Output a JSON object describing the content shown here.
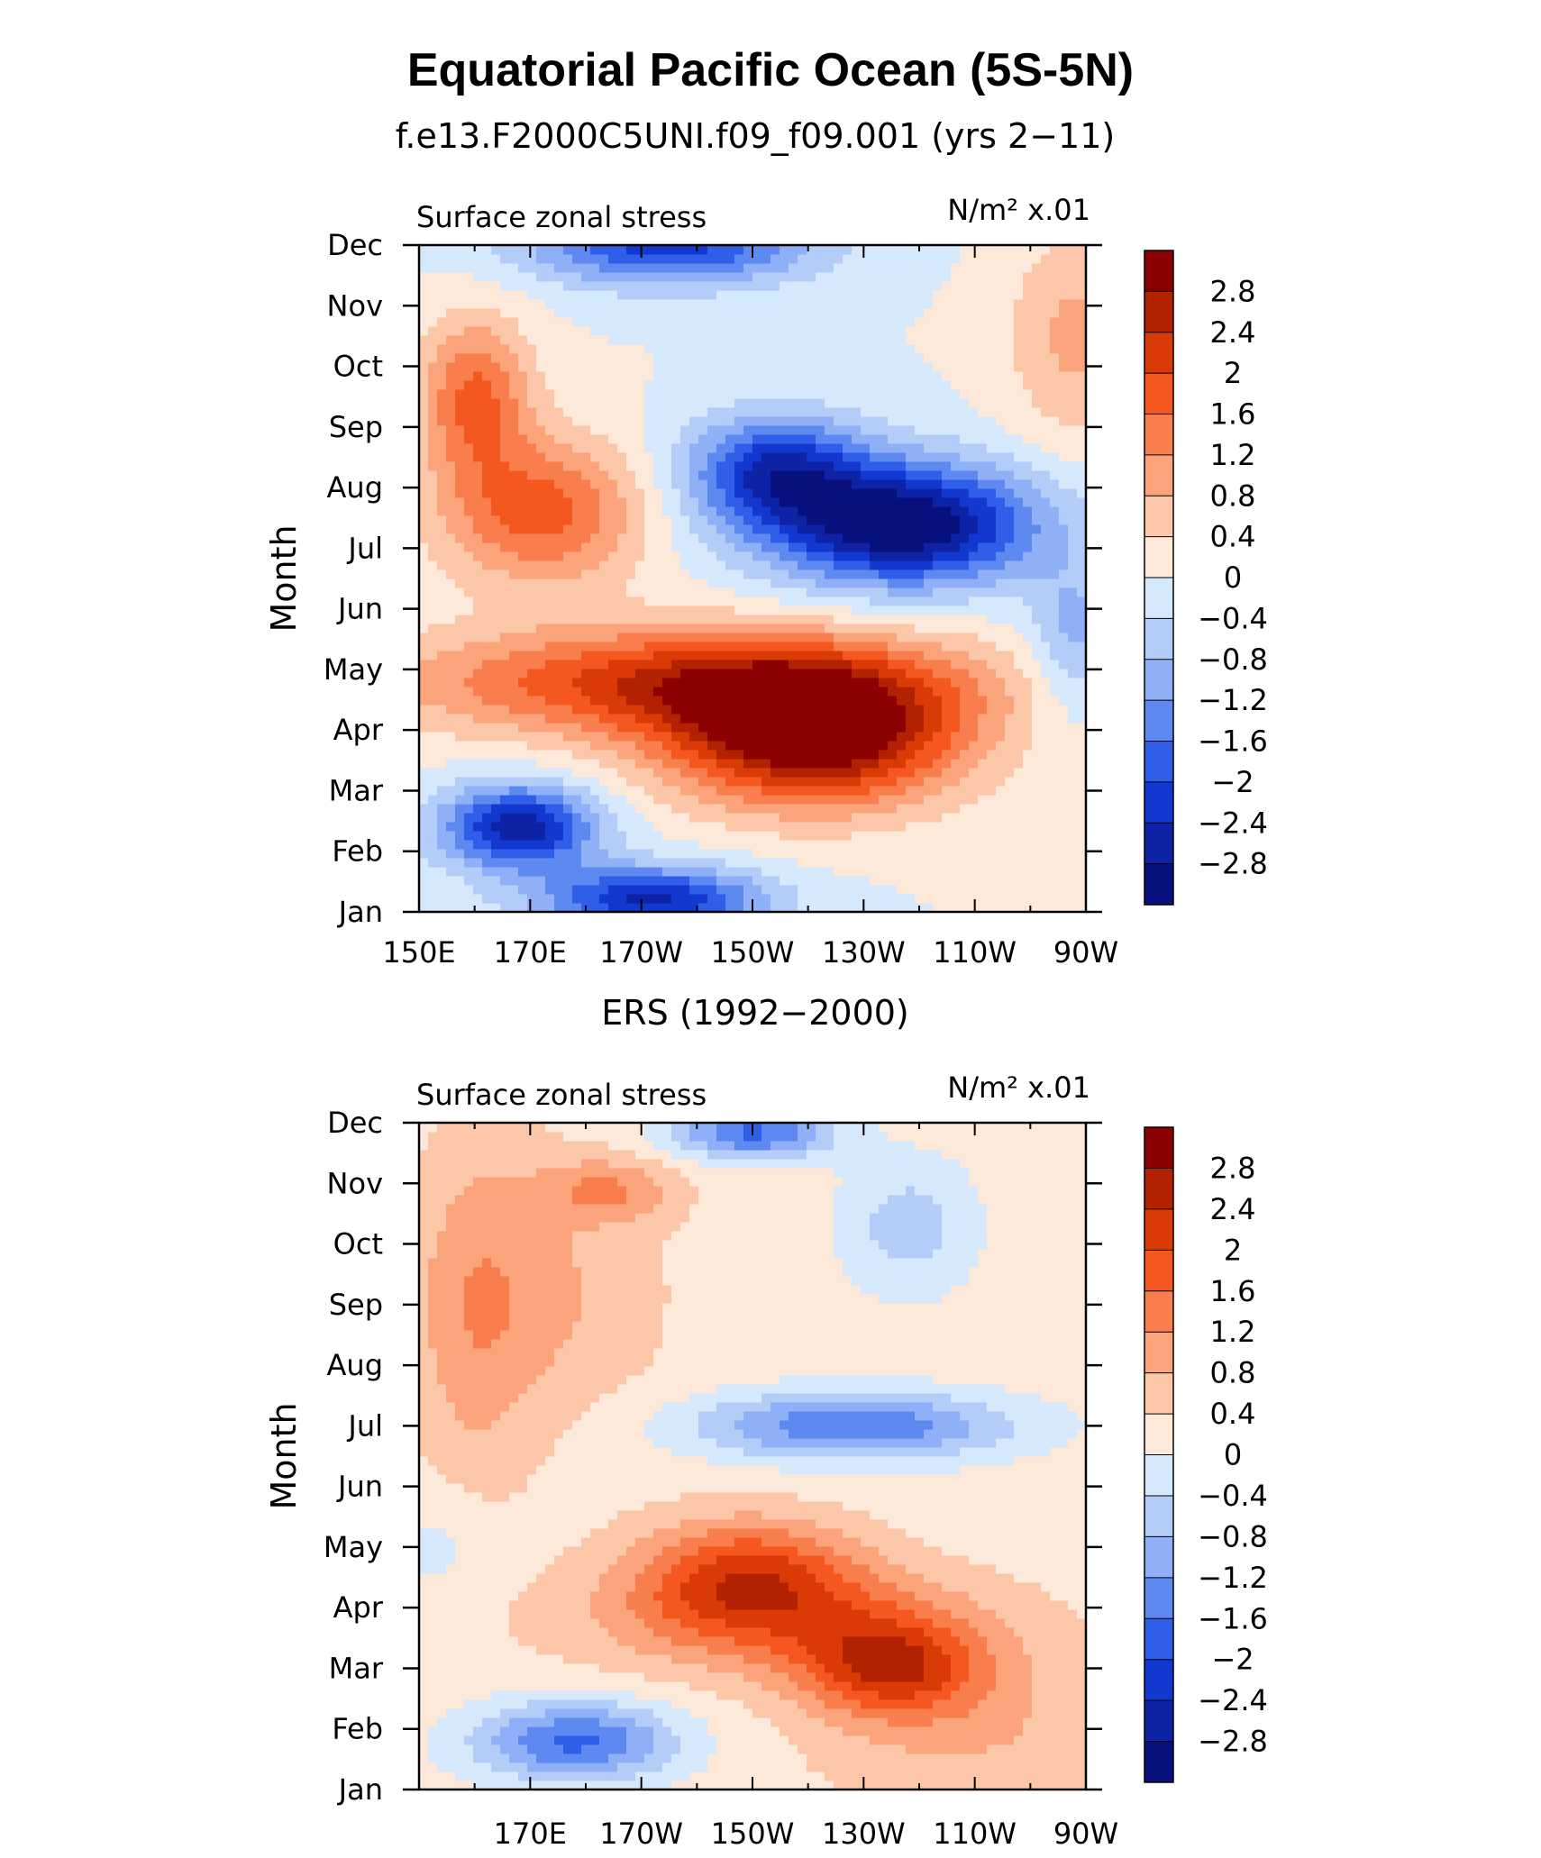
{
  "figure": {
    "title": "Equatorial Pacific Ocean (5S-5N)"
  },
  "colorbar": {
    "levels": [
      "2.8",
      "2.4",
      "2",
      "1.6",
      "1.2",
      "0.8",
      "0.4",
      "0",
      "−0.4",
      "−0.8",
      "−1.2",
      "−1.6",
      "−2",
      "−2.4",
      "−2.8"
    ],
    "colors": [
      "#8b0000",
      "#b22200",
      "#d93a06",
      "#f4581e",
      "#f97e4e",
      "#fba47c",
      "#fcc7a9",
      "#fde9d9",
      "#d6e8fb",
      "#b4cdf8",
      "#8fb0f6",
      "#5e89f0",
      "#2f5ee8",
      "#1238cf",
      "#0e22a5",
      "#08107d"
    ]
  },
  "chart_data": [
    {
      "type": "heatmap",
      "title": "f.e13.F2000C5UNI.f09_f09.001 (yrs 2−11)",
      "left_label": "Surface zonal stress",
      "right_label": "N/m² x.01",
      "ylabel": "Month",
      "xlabel": "",
      "x_ticks": [
        "150E",
        "170E",
        "170W",
        "150W",
        "130W",
        "110W",
        "90W"
      ],
      "y_ticks": [
        "Jan",
        "Feb",
        "Mar",
        "Apr",
        "May",
        "Jun",
        "Jul",
        "Aug",
        "Sep",
        "Oct",
        "Nov",
        "Dec"
      ],
      "x_range_deg_east": [
        150,
        270
      ],
      "y_range_month": [
        1,
        12
      ],
      "value_range": [
        -3.2,
        3.2
      ],
      "features": [
        {
          "kind": "max",
          "lon": 221,
          "month": 3.9,
          "value": 3.0
        },
        {
          "kind": "min",
          "lon": 237,
          "month": 7.4,
          "value": -3.0
        },
        {
          "kind": "min",
          "lon": 167,
          "month": 2.5,
          "value": -2.5
        },
        {
          "kind": "max",
          "lon": 163,
          "month": 8.7,
          "value": 1.8
        },
        {
          "kind": "min",
          "lon": 197,
          "month": 11.8,
          "value": -1.9
        }
      ]
    },
    {
      "type": "heatmap",
      "title": "ERS (1992−2000)",
      "left_label": "Surface zonal stress",
      "right_label": "N/m² x.01",
      "ylabel": "Month",
      "xlabel": "",
      "x_ticks": [
        "",
        "170E",
        "170W",
        "150W",
        "130W",
        "110W",
        "90W"
      ],
      "y_ticks": [
        "Jan",
        "Feb",
        "Mar",
        "Apr",
        "May",
        "Jun",
        "Jul",
        "Aug",
        "Sep",
        "Oct",
        "Nov",
        "Dec"
      ],
      "x_range_deg_east": [
        150,
        270
      ],
      "y_range_month": [
        1,
        12
      ],
      "value_range": [
        -3.2,
        3.2
      ],
      "features": [
        {
          "kind": "max",
          "lon": 235,
          "month": 3.0,
          "value": 1.7
        },
        {
          "kind": "max",
          "lon": 206,
          "month": 4.9,
          "value": 1.6
        },
        {
          "kind": "min",
          "lon": 215,
          "month": 7.0,
          "value": -1.7
        },
        {
          "kind": "min",
          "lon": 249,
          "month": 7.0,
          "value": -1.6
        },
        {
          "kind": "min",
          "lon": 173,
          "month": 2.0,
          "value": -1.8
        },
        {
          "kind": "min",
          "lon": 210,
          "month": 11.8,
          "value": -1.8
        },
        {
          "kind": "max",
          "lon": 184,
          "month": 10.9,
          "value": 0.9
        },
        {
          "kind": "max",
          "lon": 165,
          "month": 9.0,
          "value": 0.6
        }
      ]
    }
  ]
}
